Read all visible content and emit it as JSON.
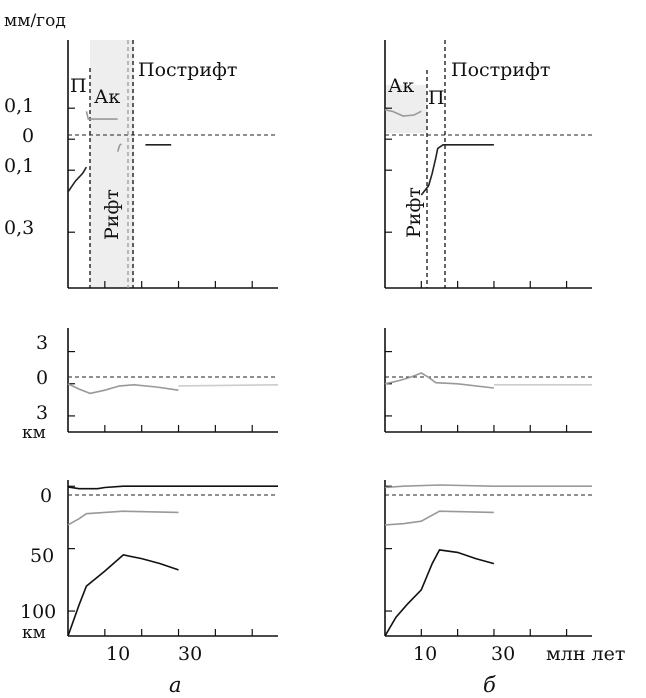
{
  "figure": {
    "top_unit": "мм/год",
    "x_unit": "млн лет",
    "panel_letters": [
      "а",
      "б"
    ],
    "top_ticks": [
      "0,1",
      "0",
      "0,1",
      "0,3"
    ],
    "mid_ticks": [
      "3",
      "0",
      "3"
    ],
    "mid_unit": "км",
    "bot_ticks": [
      "0",
      "50",
      "100"
    ],
    "bot_unit": "км",
    "x_ticks": [
      "10",
      "30"
    ],
    "phase_labels": {
      "a": {
        "p": "П",
        "ak": "Ак",
        "postrift": "Пострифт",
        "rift": "Рифт"
      },
      "b": {
        "ak": "Ак",
        "p": "П",
        "postrift": "Пострифт",
        "rift": "Рифт"
      }
    }
  },
  "chart_data": [
    {
      "panel": "а",
      "type": "line",
      "row": "top",
      "xlim": [
        0,
        57
      ],
      "ylim": [
        -0.48,
        0.32
      ],
      "ytick_values": [
        0.1,
        0,
        -0.1,
        -0.3
      ],
      "phase_bounds": [
        5,
        13.5
      ],
      "series": [
        {
          "color": "#999999",
          "values": [
            [
              5,
              0.09
            ],
            [
              5.5,
              0.065
            ],
            [
              7,
              0.065
            ],
            [
              9,
              0.065
            ],
            [
              13.5,
              0.065
            ]
          ]
        },
        {
          "color": "#222222",
          "values": [
            [
              0,
              -0.17
            ],
            [
              2,
              -0.135
            ],
            [
              4,
              -0.11
            ],
            [
              5,
              -0.09
            ]
          ]
        },
        {
          "color": "#999999",
          "values": [
            [
              13.5,
              -0.04
            ],
            [
              14,
              -0.02
            ],
            [
              14.5,
              -0.015
            ]
          ]
        },
        {
          "color": "#222222",
          "values": [
            [
              21,
              -0.018
            ],
            [
              28,
              -0.018
            ]
          ]
        }
      ]
    },
    {
      "panel": "б",
      "type": "line",
      "row": "top",
      "xlim": [
        0,
        57
      ],
      "ylim": [
        -0.48,
        0.32
      ],
      "ytick_values": [
        0.1,
        0,
        -0.1,
        -0.3
      ],
      "phase_bounds": [
        10,
        14
      ],
      "series": [
        {
          "color": "#999999",
          "values": [
            [
              0,
              0.095
            ],
            [
              2,
              0.09
            ],
            [
              5,
              0.075
            ],
            [
              8,
              0.078
            ],
            [
              10,
              0.09
            ]
          ]
        },
        {
          "color": "#222222",
          "values": [
            [
              10,
              -0.18
            ],
            [
              12,
              -0.15
            ],
            [
              13,
              -0.11
            ],
            [
              14,
              -0.06
            ],
            [
              14.5,
              -0.03
            ],
            [
              16,
              -0.018
            ],
            [
              30,
              -0.018
            ]
          ]
        }
      ]
    },
    {
      "panel": "а",
      "type": "line",
      "row": "middle",
      "xlim": [
        0,
        57
      ],
      "ylim": [
        -4.5,
        5.2
      ],
      "ytick_values": [
        3,
        0,
        -3
      ],
      "series": [
        {
          "color": "#999999",
          "values": [
            [
              0,
              0
            ],
            [
              3,
              -0.5
            ],
            [
              6,
              -0.9
            ],
            [
              10,
              -0.6
            ],
            [
              14,
              -0.2
            ],
            [
              18,
              -0.1
            ],
            [
              24,
              -0.3
            ],
            [
              30,
              -0.6
            ]
          ]
        },
        {
          "color": "#cccccc",
          "values": [
            [
              30,
              -0.2
            ],
            [
              57,
              -0.1
            ]
          ]
        }
      ]
    },
    {
      "panel": "б",
      "type": "line",
      "row": "middle",
      "xlim": [
        0,
        57
      ],
      "ylim": [
        -4.5,
        5.2
      ],
      "ytick_values": [
        3,
        0,
        -3
      ],
      "series": [
        {
          "color": "#999999",
          "values": [
            [
              0,
              0
            ],
            [
              4,
              0.3
            ],
            [
              7,
              0.6
            ],
            [
              10,
              1.0
            ],
            [
              12,
              0.6
            ],
            [
              14,
              0.1
            ],
            [
              20,
              0
            ],
            [
              30,
              -0.4
            ]
          ]
        },
        {
          "color": "#cccccc",
          "values": [
            [
              30,
              -0.1
            ],
            [
              57,
              -0.1
            ]
          ]
        }
      ]
    },
    {
      "panel": "а",
      "type": "line",
      "row": "bottom",
      "xlim": [
        0,
        57
      ],
      "ylim": [
        120,
        -5
      ],
      "ytick_values": [
        0,
        50,
        100
      ],
      "series": [
        {
          "color": "#111111",
          "values": [
            [
              0,
              0.5
            ],
            [
              3,
              2
            ],
            [
              8,
              2
            ],
            [
              10,
              1
            ],
            [
              15,
              0
            ],
            [
              57,
              0
            ]
          ]
        },
        {
          "color": "#999999",
          "values": [
            [
              0,
              31
            ],
            [
              3,
              26
            ],
            [
              5,
              22
            ],
            [
              10,
              21
            ],
            [
              15,
              20
            ],
            [
              30,
              21
            ]
          ]
        },
        {
          "color": "#111111",
          "values": [
            [
              0,
              120
            ],
            [
              3,
              95
            ],
            [
              5,
              80
            ],
            [
              10,
              68
            ],
            [
              15,
              55
            ],
            [
              20,
              58
            ],
            [
              25,
              62
            ],
            [
              30,
              67
            ]
          ]
        }
      ]
    },
    {
      "panel": "б",
      "type": "line",
      "row": "bottom",
      "xlim": [
        0,
        57
      ],
      "ylim": [
        120,
        -5
      ],
      "ytick_values": [
        0,
        50,
        100
      ],
      "series": [
        {
          "color": "#999999",
          "values": [
            [
              0,
              1
            ],
            [
              5,
              0
            ],
            [
              15,
              -1
            ],
            [
              30,
              0
            ],
            [
              57,
              0
            ]
          ]
        },
        {
          "color": "#999999",
          "values": [
            [
              0,
              31
            ],
            [
              5,
              30
            ],
            [
              10,
              28
            ],
            [
              15,
              20
            ],
            [
              30,
              21
            ]
          ]
        },
        {
          "color": "#111111",
          "values": [
            [
              0,
              120
            ],
            [
              3,
              105
            ],
            [
              6,
              95
            ],
            [
              10,
              83
            ],
            [
              13,
              62
            ],
            [
              15,
              51
            ],
            [
              20,
              53
            ],
            [
              25,
              58
            ],
            [
              30,
              62
            ]
          ]
        }
      ]
    }
  ]
}
